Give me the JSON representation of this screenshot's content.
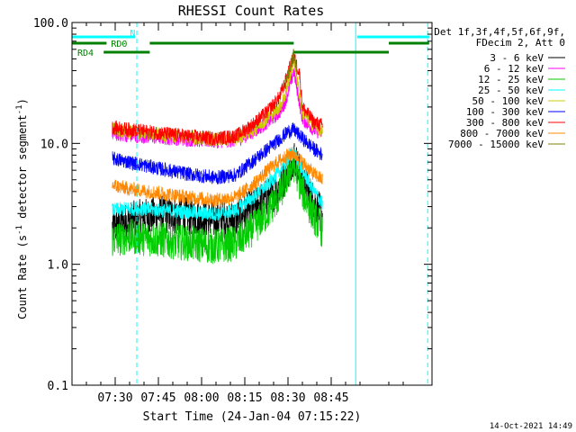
{
  "chart_data": {
    "type": "line",
    "title": "RHESSI Count Rates",
    "xlabel": "Start Time (24-Jan-04 07:15:22)",
    "ylabel_parts": [
      "Count Rate (s",
      "-1",
      " detector segment",
      "-1",
      ")"
    ],
    "yscale": "log",
    "ylim": [
      0.1,
      100.0
    ],
    "xlim_minutes_after_0715": [
      0,
      125
    ],
    "y_ticks": [
      {
        "value": 0.1,
        "label": "0.1"
      },
      {
        "value": 1.0,
        "label": "1.0"
      },
      {
        "value": 10.0,
        "label": "10.0"
      },
      {
        "value": 100.0,
        "label": "100.0"
      }
    ],
    "x_ticks": [
      {
        "minute": 15,
        "label": "07:30"
      },
      {
        "minute": 30,
        "label": "07:45"
      },
      {
        "minute": 45,
        "label": "08:00"
      },
      {
        "minute": 60,
        "label": "08:15"
      },
      {
        "minute": 75,
        "label": "08:30"
      },
      {
        "minute": 90,
        "label": "08:45"
      }
    ],
    "legend": {
      "placement": "outside-right",
      "header": [
        "Det 1f,3f,4f,5f,6f,9f,",
        "FDecim 2, Att 0"
      ]
    },
    "series": [
      {
        "name": "3 - 6 keV",
        "color": "#000000",
        "points": [
          [
            14,
            2.0
          ],
          [
            20,
            2.3
          ],
          [
            30,
            2.6
          ],
          [
            40,
            2.5
          ],
          [
            50,
            2.3
          ],
          [
            57,
            2.4
          ],
          [
            63,
            3.0
          ],
          [
            68,
            3.6
          ],
          [
            72,
            4.3
          ],
          [
            75,
            6.0
          ],
          [
            77,
            8.0
          ],
          [
            80,
            5.0
          ],
          [
            84,
            3.3
          ],
          [
            87,
            2.5
          ]
        ]
      },
      {
        "name": "6 - 12 keV",
        "color": "#ff00ff",
        "points": [
          [
            14,
            12.0
          ],
          [
            20,
            11.6
          ],
          [
            30,
            11.2
          ],
          [
            40,
            10.8
          ],
          [
            50,
            10.4
          ],
          [
            57,
            10.6
          ],
          [
            63,
            12.5
          ],
          [
            68,
            15.0
          ],
          [
            72,
            18.0
          ],
          [
            74,
            22.0
          ],
          [
            76,
            32.0
          ],
          [
            77,
            40.0
          ],
          [
            80,
            16.0
          ],
          [
            84,
            13.0
          ],
          [
            87,
            12.0
          ]
        ]
      },
      {
        "name": "12 - 25 keV",
        "color": "#00cc00",
        "points": [
          [
            14,
            1.6
          ],
          [
            20,
            1.7
          ],
          [
            30,
            1.6
          ],
          [
            40,
            1.5
          ],
          [
            50,
            1.4
          ],
          [
            57,
            1.5
          ],
          [
            63,
            2.0
          ],
          [
            68,
            2.7
          ],
          [
            72,
            3.7
          ],
          [
            75,
            5.5
          ],
          [
            77,
            6.8
          ],
          [
            80,
            4.0
          ],
          [
            84,
            2.5
          ],
          [
            87,
            1.9
          ]
        ]
      },
      {
        "name": "25 - 50 keV",
        "color": "#00ffff",
        "points": [
          [
            14,
            2.8
          ],
          [
            20,
            2.9
          ],
          [
            30,
            2.8
          ],
          [
            40,
            2.7
          ],
          [
            50,
            2.6
          ],
          [
            57,
            2.8
          ],
          [
            63,
            3.6
          ],
          [
            68,
            4.6
          ],
          [
            72,
            5.8
          ],
          [
            75,
            7.5
          ],
          [
            77,
            8.5
          ],
          [
            80,
            6.0
          ],
          [
            84,
            4.0
          ],
          [
            87,
            3.2
          ]
        ]
      },
      {
        "name": "50 - 100 keV",
        "color": "#cccc00",
        "points": [
          [
            14,
            13.0
          ],
          [
            20,
            12.5
          ],
          [
            30,
            12.0
          ],
          [
            40,
            11.3
          ],
          [
            50,
            10.8
          ],
          [
            57,
            11.0
          ],
          [
            63,
            13.0
          ],
          [
            68,
            16.5
          ],
          [
            72,
            20.0
          ],
          [
            74,
            25.0
          ],
          [
            76,
            40.0
          ],
          [
            77,
            50.0
          ],
          [
            80,
            18.0
          ],
          [
            84,
            14.0
          ],
          [
            87,
            12.5
          ]
        ]
      },
      {
        "name": "100 - 300 keV",
        "color": "#0000ff",
        "points": [
          [
            14,
            7.5
          ],
          [
            20,
            7.0
          ],
          [
            30,
            6.2
          ],
          [
            40,
            5.6
          ],
          [
            50,
            5.2
          ],
          [
            57,
            5.5
          ],
          [
            63,
            7.2
          ],
          [
            68,
            9.0
          ],
          [
            72,
            10.8
          ],
          [
            75,
            12.5
          ],
          [
            77,
            13.0
          ],
          [
            80,
            11.0
          ],
          [
            84,
            9.0
          ],
          [
            87,
            8.0
          ]
        ]
      },
      {
        "name": "300 - 800 keV",
        "color": "#ff0000",
        "points": [
          [
            14,
            13.5
          ],
          [
            20,
            13.0
          ],
          [
            30,
            12.2
          ],
          [
            40,
            11.5
          ],
          [
            50,
            11.0
          ],
          [
            57,
            11.5
          ],
          [
            63,
            14.5
          ],
          [
            68,
            18.5
          ],
          [
            72,
            24.0
          ],
          [
            74,
            32.0
          ],
          [
            76,
            45.0
          ],
          [
            77,
            52.0
          ],
          [
            79,
            38.0
          ],
          [
            80,
            20.0
          ],
          [
            84,
            15.0
          ],
          [
            87,
            14.0
          ]
        ]
      },
      {
        "name": "800 - 7000 keV",
        "color": "#ff8800",
        "points": [
          [
            14,
            4.5
          ],
          [
            20,
            4.2
          ],
          [
            30,
            3.9
          ],
          [
            40,
            3.6
          ],
          [
            50,
            3.4
          ],
          [
            57,
            3.6
          ],
          [
            63,
            4.6
          ],
          [
            68,
            6.0
          ],
          [
            72,
            7.2
          ],
          [
            75,
            8.0
          ],
          [
            77,
            8.3
          ],
          [
            80,
            7.0
          ],
          [
            84,
            5.6
          ],
          [
            87,
            5.0
          ]
        ]
      },
      {
        "name": "7000 - 15000 keV",
        "color": "#808000",
        "points": [
          [
            74,
            30.0
          ],
          [
            76,
            45.0
          ],
          [
            77,
            55.0
          ],
          [
            78,
            40.0
          ]
        ]
      }
    ],
    "annotations": {
      "markers": [
        {
          "label": "N",
          "color": "#00ffff",
          "segments": [
            [
              0,
              22
            ],
            [
              99,
              124
            ]
          ],
          "level": 0
        },
        {
          "label": "RD0",
          "color": "#008000",
          "segments": [
            [
              0,
              12
            ],
            [
              27,
              77
            ],
            [
              110,
              124
            ]
          ],
          "level": 1
        },
        {
          "label": "RD4",
          "color": "#008000",
          "segments": [
            [
              11,
              27
            ],
            [
              77,
              110
            ]
          ],
          "level": 2
        }
      ],
      "vlines_solid_minutes": [
        0,
        98.5
      ],
      "vlines_dashed_minutes": [
        22.5,
        123.5
      ]
    }
  },
  "footer": {
    "timestamp": "14-Oct-2021 14:49"
  }
}
